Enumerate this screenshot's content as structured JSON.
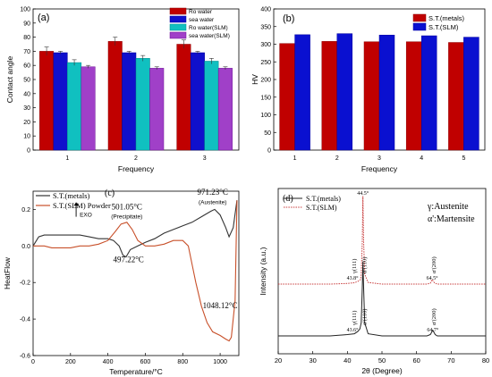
{
  "chart_data": [
    {
      "type": "bar",
      "panel_label": "(a)",
      "title": "",
      "xlabel": "Frequency",
      "ylabel": "Contact angle",
      "ylim": [
        0,
        100
      ],
      "yticks": [
        0,
        10,
        20,
        30,
        40,
        50,
        60,
        70,
        80,
        90,
        100
      ],
      "categories": [
        "1",
        "2",
        "3"
      ],
      "legend_position": "top-right",
      "series": [
        {
          "name": "Ro water",
          "color": "#c00000",
          "values": [
            70,
            77,
            75
          ],
          "errors": [
            3,
            3,
            3
          ]
        },
        {
          "name": "sea water",
          "color": "#1010cc",
          "values": [
            69,
            69,
            69
          ],
          "errors": [
            1,
            1,
            1
          ]
        },
        {
          "name": "Ro water(SLM)",
          "color": "#10c0c0",
          "values": [
            62,
            65,
            63
          ],
          "errors": [
            2,
            2,
            2
          ]
        },
        {
          "name": "sea water(SLM)",
          "color": "#a040c8",
          "values": [
            59,
            58,
            58
          ],
          "errors": [
            1,
            1,
            1
          ]
        }
      ]
    },
    {
      "type": "bar",
      "panel_label": "(b)",
      "title": "",
      "xlabel": "Frequency",
      "ylabel": "HV",
      "ylim": [
        0,
        400
      ],
      "yticks": [
        0,
        50,
        100,
        150,
        200,
        250,
        300,
        350,
        400
      ],
      "categories": [
        "1",
        "2",
        "3",
        "4",
        "5"
      ],
      "legend_position": "top-right",
      "series": [
        {
          "name": "S.T.(metals)",
          "color": "#c00000",
          "values": [
            302,
            308,
            307,
            307,
            305
          ]
        },
        {
          "name": "S.T.(SLM)",
          "color": "#0a10d0",
          "values": [
            327,
            330,
            326,
            324,
            320
          ]
        }
      ]
    },
    {
      "type": "line",
      "panel_label": "(c)",
      "title": "",
      "xlabel": "Temperature/°C",
      "ylabel": "HeatFlow",
      "xlim": [
        0,
        1100
      ],
      "ylim": [
        -0.6,
        0.3
      ],
      "xticks": [
        0,
        200,
        400,
        600,
        800,
        1000
      ],
      "yticks": [
        -0.6,
        -0.4,
        -0.2,
        0.0,
        0.2
      ],
      "legend_position": "top-left",
      "exo_label": "EXO",
      "series": [
        {
          "name": "S.T.(metals)",
          "color": "#333333",
          "x": [
            0,
            30,
            60,
            100,
            150,
            200,
            250,
            300,
            350,
            400,
            430,
            460,
            480,
            497,
            520,
            560,
            600,
            650,
            700,
            750,
            800,
            850,
            900,
            950,
            971,
            1000,
            1030,
            1048,
            1070,
            1090
          ],
          "y": [
            0.0,
            0.05,
            0.06,
            0.06,
            0.06,
            0.06,
            0.06,
            0.05,
            0.04,
            0.04,
            0.03,
            0.0,
            -0.05,
            -0.06,
            -0.02,
            0.0,
            0.02,
            0.04,
            0.07,
            0.09,
            0.11,
            0.13,
            0.16,
            0.19,
            0.2,
            0.17,
            0.1,
            0.05,
            0.1,
            0.25
          ]
        },
        {
          "name": "S.T.(SLM) Powder",
          "color": "#c8502a",
          "x": [
            0,
            30,
            60,
            100,
            150,
            200,
            250,
            300,
            350,
            400,
            440,
            470,
            501,
            530,
            560,
            600,
            650,
            700,
            750,
            800,
            830,
            850,
            870,
            900,
            930,
            960,
            1000,
            1030,
            1048,
            1060,
            1080,
            1090
          ],
          "y": [
            0.0,
            0.0,
            0.0,
            -0.01,
            -0.01,
            -0.01,
            0.0,
            0.0,
            0.01,
            0.03,
            0.08,
            0.12,
            0.13,
            0.09,
            0.03,
            0.0,
            0.0,
            0.01,
            0.03,
            0.03,
            0.0,
            -0.1,
            -0.2,
            -0.33,
            -0.42,
            -0.47,
            -0.49,
            -0.51,
            -0.52,
            -0.5,
            -0.3,
            0.25
          ]
        }
      ],
      "annotations": [
        {
          "text": "501.05°C",
          "x": 501,
          "y": 0.2
        },
        {
          "text": "(Precipitate)",
          "x": 501,
          "y": 0.15
        },
        {
          "text": "497.22°C",
          "x": 510,
          "y": -0.09
        },
        {
          "text": "971.23°C",
          "x": 960,
          "y": 0.28
        },
        {
          "text": "(Austenite)",
          "x": 960,
          "y": 0.23
        },
        {
          "text": "1048.12°C",
          "x": 1000,
          "y": -0.34
        }
      ]
    },
    {
      "type": "line",
      "panel_label": "(d)",
      "title": "",
      "xlabel": "2θ (Degree)",
      "ylabel": "Intensity (a.u.)",
      "xlim": [
        20,
        80
      ],
      "xticks": [
        20,
        30,
        40,
        50,
        60,
        70,
        80
      ],
      "legend_position": "top-left",
      "phase_legend": [
        "γ:Austenite",
        "α':Martensite"
      ],
      "series": [
        {
          "name": "S.T.(metals)",
          "color": "#222222",
          "style": "solid",
          "x": [
            20,
            25,
            30,
            35,
            40,
            42,
            43,
            43.6,
            44,
            44.3,
            44.5,
            44.7,
            45,
            46,
            50,
            55,
            60,
            63,
            64,
            64.7,
            65.4,
            66,
            70,
            75,
            80
          ],
          "y": [
            1,
            1,
            1,
            1,
            1.3,
            1.5,
            2,
            2.6,
            4,
            12,
            18,
            12,
            4,
            1.5,
            1,
            1,
            1,
            1,
            1.3,
            2.3,
            1.3,
            1,
            1,
            1,
            1
          ]
        },
        {
          "name": "S.T.(SLM)",
          "color": "#c83c3c",
          "style": "dotted",
          "x": [
            20,
            25,
            30,
            35,
            40,
            42,
            43,
            43.8,
            44,
            44.3,
            44.5,
            44.7,
            45,
            46,
            50,
            55,
            60,
            63,
            64,
            64.5,
            65.2,
            66,
            70,
            75,
            80
          ],
          "y": [
            1,
            1,
            1,
            1,
            1.2,
            1.4,
            1.8,
            2.4,
            4,
            14,
            28,
            14,
            4,
            1.5,
            1,
            1,
            1,
            1,
            1.3,
            2.4,
            1.3,
            1,
            1,
            1,
            1
          ]
        }
      ],
      "annotations": [
        {
          "text": "44.5°",
          "x": 44.5,
          "series": "S.T.(SLM)"
        },
        {
          "text": "α'(110)",
          "x": 45.5,
          "series": "S.T.(SLM)"
        },
        {
          "text": "γ(111)",
          "x": 42.5,
          "series": "S.T.(SLM)"
        },
        {
          "text": "43.8°",
          "x": 41.5,
          "series": "S.T.(SLM)"
        },
        {
          "text": "64.5°",
          "x": 64.5,
          "series": "S.T.(SLM)"
        },
        {
          "text": "α'(200)",
          "x": 65.5,
          "series": "S.T.(SLM)"
        },
        {
          "text": "α'(110)",
          "x": 45.5,
          "series": "S.T.(metals)"
        },
        {
          "text": "γ(111)",
          "x": 42.5,
          "series": "S.T.(metals)"
        },
        {
          "text": "43.6°",
          "x": 41.5,
          "series": "S.T.(metals)"
        },
        {
          "text": "64.7°",
          "x": 64.7,
          "series": "S.T.(metals)"
        },
        {
          "text": "α'(200)",
          "x": 65.5,
          "series": "S.T.(metals)"
        }
      ]
    }
  ]
}
